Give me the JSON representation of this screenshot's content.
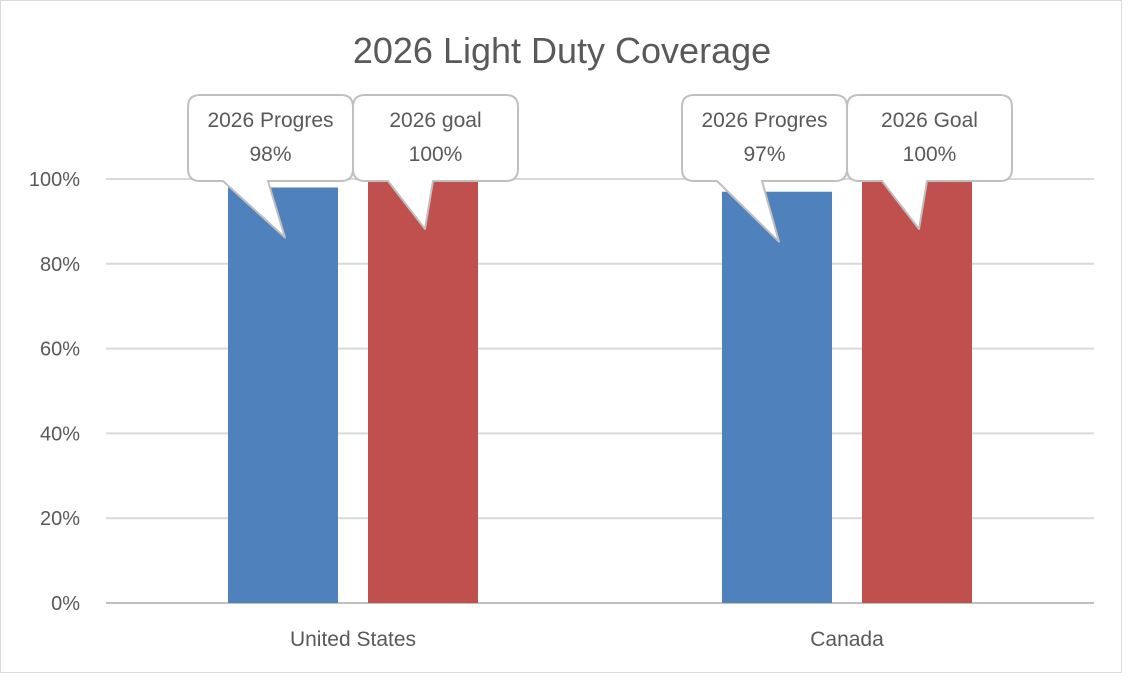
{
  "chart_data": {
    "type": "bar",
    "title": "2026 Light Duty Coverage",
    "categories": [
      "United States",
      "Canada"
    ],
    "series": [
      {
        "values": [
          98,
          97
        ],
        "color": "#4f81bd"
      },
      {
        "values": [
          100,
          100
        ],
        "color": "#c0504d"
      }
    ],
    "ylim": [
      0,
      100
    ],
    "yticks": [
      0,
      20,
      40,
      60,
      80,
      100
    ],
    "ytick_labels": [
      "0%",
      "20%",
      "40%",
      "60%",
      "80%",
      "100%"
    ],
    "grid": true,
    "legend": "none",
    "callouts": [
      {
        "series": 0,
        "category": 0,
        "lines": [
          "2026 Progres",
          "98%"
        ]
      },
      {
        "series": 1,
        "category": 0,
        "lines": [
          "2026 goal",
          "100%"
        ]
      },
      {
        "series": 0,
        "category": 1,
        "lines": [
          "2026 Progres",
          "97%"
        ]
      },
      {
        "series": 1,
        "category": 1,
        "lines": [
          "2026 Goal",
          "100%"
        ]
      }
    ]
  }
}
